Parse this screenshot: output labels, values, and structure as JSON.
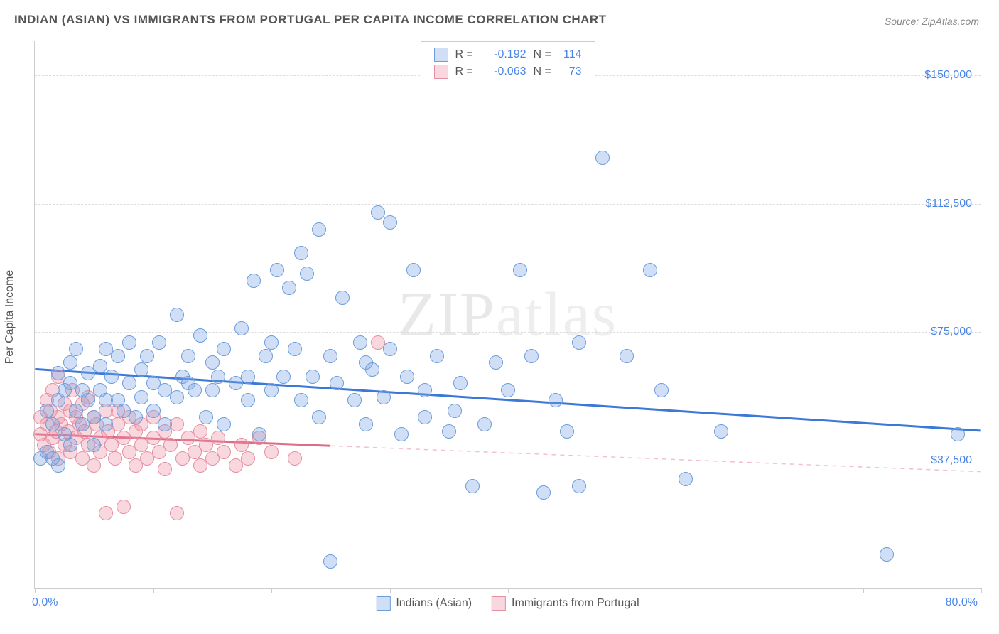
{
  "title": "INDIAN (ASIAN) VS IMMIGRANTS FROM PORTUGAL PER CAPITA INCOME CORRELATION CHART",
  "source": "Source: ZipAtlas.com",
  "watermark_1": "ZIP",
  "watermark_2": "atlas",
  "chart": {
    "type": "scatter",
    "background_color": "#ffffff",
    "grid_color": "#dddddd",
    "axis_color": "#cccccc",
    "ylabel": "Per Capita Income",
    "label_fontsize": 16,
    "label_color": "#555555",
    "tick_color": "#4a86e8",
    "xlim": [
      0,
      80
    ],
    "ylim": [
      0,
      160000
    ],
    "xtick_label_start": "0.0%",
    "xtick_label_end": "80.0%",
    "xticks": [
      0,
      10,
      20,
      30,
      40,
      50,
      60,
      70,
      80
    ],
    "yticks": [
      {
        "v": 37500,
        "label": "$37,500"
      },
      {
        "v": 75000,
        "label": "$75,000"
      },
      {
        "v": 112500,
        "label": "$112,500"
      },
      {
        "v": 150000,
        "label": "$150,000"
      }
    ],
    "series": [
      {
        "name": "Indians (Asian)",
        "fill": "rgba(120,163,226,0.35)",
        "stroke": "#6d9ddb",
        "line_color": "#3b78d8",
        "line_dash_color": "rgba(120,163,226,0.6)",
        "marker_radius": 10,
        "r": "-0.192",
        "n": "114",
        "trend": {
          "x1": 0,
          "y1": 64000,
          "x2": 80,
          "y2": 46000,
          "solid_until_x": 80
        },
        "points": [
          [
            0.5,
            38000
          ],
          [
            1,
            40000
          ],
          [
            1,
            52000
          ],
          [
            1.5,
            38000
          ],
          [
            1.5,
            48000
          ],
          [
            2,
            36000
          ],
          [
            2,
            55000
          ],
          [
            2,
            63000
          ],
          [
            2.5,
            45000
          ],
          [
            2.5,
            58000
          ],
          [
            3,
            42000
          ],
          [
            3,
            60000
          ],
          [
            3,
            66000
          ],
          [
            3.5,
            52000
          ],
          [
            3.5,
            70000
          ],
          [
            4,
            48000
          ],
          [
            4,
            58000
          ],
          [
            4.5,
            63000
          ],
          [
            4.5,
            55000
          ],
          [
            5,
            50000
          ],
          [
            5,
            42000
          ],
          [
            5.5,
            65000
          ],
          [
            5.5,
            58000
          ],
          [
            6,
            55000
          ],
          [
            6,
            48000
          ],
          [
            6,
            70000
          ],
          [
            6.5,
            62000
          ],
          [
            7,
            55000
          ],
          [
            7,
            68000
          ],
          [
            7.5,
            52000
          ],
          [
            8,
            60000
          ],
          [
            8,
            72000
          ],
          [
            8.5,
            50000
          ],
          [
            9,
            64000
          ],
          [
            9,
            56000
          ],
          [
            9.5,
            68000
          ],
          [
            10,
            52000
          ],
          [
            10,
            60000
          ],
          [
            10.5,
            72000
          ],
          [
            11,
            58000
          ],
          [
            11,
            48000
          ],
          [
            12,
            80000
          ],
          [
            12,
            56000
          ],
          [
            12.5,
            62000
          ],
          [
            13,
            68000
          ],
          [
            13,
            60000
          ],
          [
            13.5,
            58000
          ],
          [
            14,
            74000
          ],
          [
            14.5,
            50000
          ],
          [
            15,
            66000
          ],
          [
            15,
            58000
          ],
          [
            15.5,
            62000
          ],
          [
            16,
            48000
          ],
          [
            16,
            70000
          ],
          [
            17,
            60000
          ],
          [
            17.5,
            76000
          ],
          [
            18,
            62000
          ],
          [
            18,
            55000
          ],
          [
            18.5,
            90000
          ],
          [
            19,
            45000
          ],
          [
            19.5,
            68000
          ],
          [
            20,
            58000
          ],
          [
            20,
            72000
          ],
          [
            20.5,
            93000
          ],
          [
            21,
            62000
          ],
          [
            21.5,
            88000
          ],
          [
            22,
            70000
          ],
          [
            22.5,
            98000
          ],
          [
            22.5,
            55000
          ],
          [
            23,
            92000
          ],
          [
            23.5,
            62000
          ],
          [
            24,
            105000
          ],
          [
            24,
            50000
          ],
          [
            25,
            68000
          ],
          [
            25,
            8000
          ],
          [
            25.5,
            60000
          ],
          [
            26,
            85000
          ],
          [
            27,
            55000
          ],
          [
            27.5,
            72000
          ],
          [
            28,
            48000
          ],
          [
            28.5,
            64000
          ],
          [
            29,
            110000
          ],
          [
            29.5,
            56000
          ],
          [
            30,
            70000
          ],
          [
            30,
            107000
          ],
          [
            31,
            45000
          ],
          [
            31.5,
            62000
          ],
          [
            32,
            93000
          ],
          [
            33,
            58000
          ],
          [
            34,
            68000
          ],
          [
            35,
            46000
          ],
          [
            35.5,
            52000
          ],
          [
            36,
            60000
          ],
          [
            37,
            30000
          ],
          [
            38,
            48000
          ],
          [
            39,
            66000
          ],
          [
            40,
            58000
          ],
          [
            41,
            93000
          ],
          [
            42,
            68000
          ],
          [
            43,
            28000
          ],
          [
            44,
            55000
          ],
          [
            45,
            46000
          ],
          [
            46,
            72000
          ],
          [
            46,
            30000
          ],
          [
            48,
            126000
          ],
          [
            50,
            68000
          ],
          [
            52,
            93000
          ],
          [
            53,
            58000
          ],
          [
            55,
            32000
          ],
          [
            58,
            46000
          ],
          [
            72,
            10000
          ],
          [
            78,
            45000
          ],
          [
            28,
            66000
          ],
          [
            33,
            50000
          ]
        ]
      },
      {
        "name": "Immigrants from Portugal",
        "fill": "rgba(235,140,160,0.35)",
        "stroke": "#e58fa2",
        "line_color": "#e06b87",
        "line_dash_color": "rgba(235,140,160,0.55)",
        "marker_radius": 10,
        "r": "-0.063",
        "n": "73",
        "trend": {
          "x1": 0,
          "y1": 45000,
          "x2": 80,
          "y2": 34000,
          "solid_until_x": 25
        },
        "points": [
          [
            0.5,
            45000
          ],
          [
            0.5,
            50000
          ],
          [
            0.8,
            42000
          ],
          [
            1,
            48000
          ],
          [
            1,
            55000
          ],
          [
            1.2,
            40000
          ],
          [
            1.3,
            52000
          ],
          [
            1.5,
            44000
          ],
          [
            1.5,
            58000
          ],
          [
            1.8,
            46000
          ],
          [
            2,
            50000
          ],
          [
            2,
            62000
          ],
          [
            2,
            38000
          ],
          [
            2.2,
            48000
          ],
          [
            2.5,
            42000
          ],
          [
            2.5,
            54000
          ],
          [
            2.8,
            46000
          ],
          [
            3,
            52000
          ],
          [
            3,
            40000
          ],
          [
            3.2,
            58000
          ],
          [
            3.5,
            44000
          ],
          [
            3.5,
            50000
          ],
          [
            3.8,
            48000
          ],
          [
            4,
            38000
          ],
          [
            4,
            54000
          ],
          [
            4.2,
            46000
          ],
          [
            4.5,
            42000
          ],
          [
            4.5,
            56000
          ],
          [
            5,
            50000
          ],
          [
            5,
            36000
          ],
          [
            5.2,
            48000
          ],
          [
            5.5,
            44000
          ],
          [
            5.5,
            40000
          ],
          [
            6,
            52000
          ],
          [
            6,
            22000
          ],
          [
            6.2,
            46000
          ],
          [
            6.5,
            42000
          ],
          [
            6.8,
            38000
          ],
          [
            7,
            48000
          ],
          [
            7,
            52000
          ],
          [
            7.5,
            44000
          ],
          [
            7.5,
            24000
          ],
          [
            8,
            40000
          ],
          [
            8,
            50000
          ],
          [
            8.5,
            46000
          ],
          [
            8.5,
            36000
          ],
          [
            9,
            42000
          ],
          [
            9,
            48000
          ],
          [
            9.5,
            38000
          ],
          [
            10,
            44000
          ],
          [
            10,
            50000
          ],
          [
            10.5,
            40000
          ],
          [
            11,
            46000
          ],
          [
            11,
            35000
          ],
          [
            11.5,
            42000
          ],
          [
            12,
            48000
          ],
          [
            12,
            22000
          ],
          [
            12.5,
            38000
          ],
          [
            13,
            44000
          ],
          [
            13.5,
            40000
          ],
          [
            14,
            46000
          ],
          [
            14,
            36000
          ],
          [
            14.5,
            42000
          ],
          [
            15,
            38000
          ],
          [
            15.5,
            44000
          ],
          [
            16,
            40000
          ],
          [
            17,
            36000
          ],
          [
            17.5,
            42000
          ],
          [
            18,
            38000
          ],
          [
            19,
            44000
          ],
          [
            20,
            40000
          ],
          [
            22,
            38000
          ],
          [
            29,
            72000
          ]
        ]
      }
    ]
  },
  "legend_top": {
    "r_label": "R =",
    "n_label": "N ="
  },
  "legend_bottom_items": [
    "Indians (Asian)",
    "Immigrants from Portugal"
  ]
}
